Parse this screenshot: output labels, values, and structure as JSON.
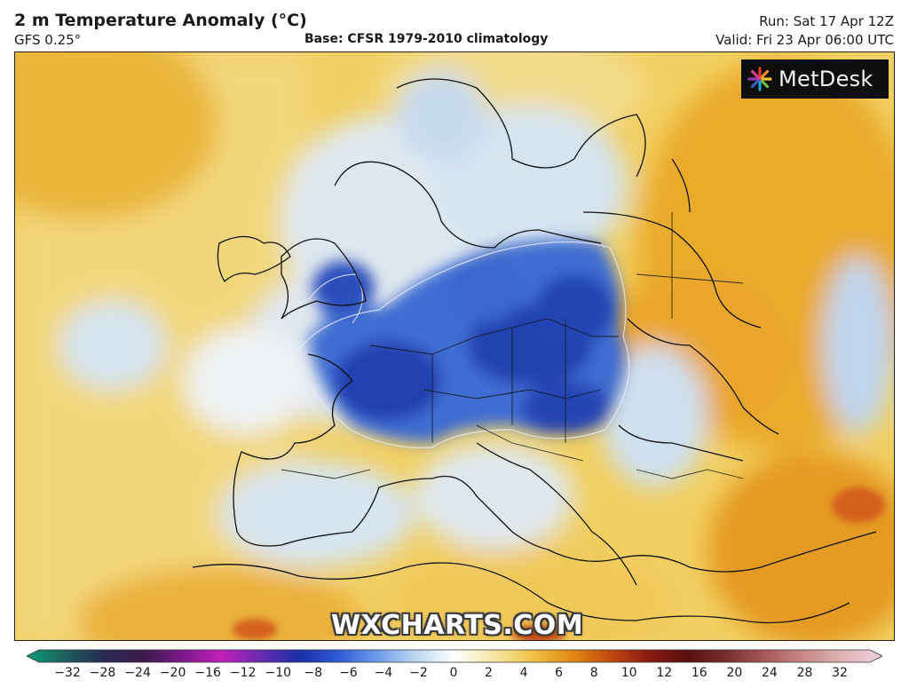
{
  "header": {
    "title": "2 m Temperature Anomaly (°C)",
    "model": "GFS 0.25°",
    "base": "Base: CFSR 1979-2010 climatology",
    "run": "Run: Sat 17 Apr 12Z",
    "valid": "Valid: Fri 23 Apr 06:00 UTC"
  },
  "logo": {
    "text": "MetDesk",
    "icon": "metdesk-starburst-icon"
  },
  "watermark": "WXCHARTS.COM",
  "colorbar": {
    "ticks": [
      "−32",
      "−28",
      "−24",
      "−20",
      "−16",
      "−12",
      "−10",
      "−8",
      "−6",
      "−4",
      "−2",
      "0",
      "2",
      "4",
      "6",
      "8",
      "10",
      "12",
      "16",
      "20",
      "24",
      "28",
      "32"
    ],
    "stops": [
      "#0d9e7a",
      "#1b5e5a",
      "#2a2a55",
      "#3d1a4a",
      "#7a1a8a",
      "#c21fb8",
      "#6a2bb0",
      "#1c2fa8",
      "#2f5ad6",
      "#6d9bea",
      "#bcd6f2",
      "#ffffff",
      "#f4e7a6",
      "#f0c246",
      "#e38a12",
      "#c24a10",
      "#8a1a12",
      "#5a1010",
      "#7a3030",
      "#a85a5a",
      "#c88a8a",
      "#e0b4b4",
      "#f2d0e0"
    ]
  },
  "colors": {
    "cold_core": "#1c35a8",
    "cold_mid": "#3b6cd0",
    "cold_light": "#a9c8ec",
    "neutral": "#f4f1dc",
    "warm_light": "#f3dd8a",
    "warm_mid": "#edbf45",
    "warm_strong": "#e39a1c"
  }
}
